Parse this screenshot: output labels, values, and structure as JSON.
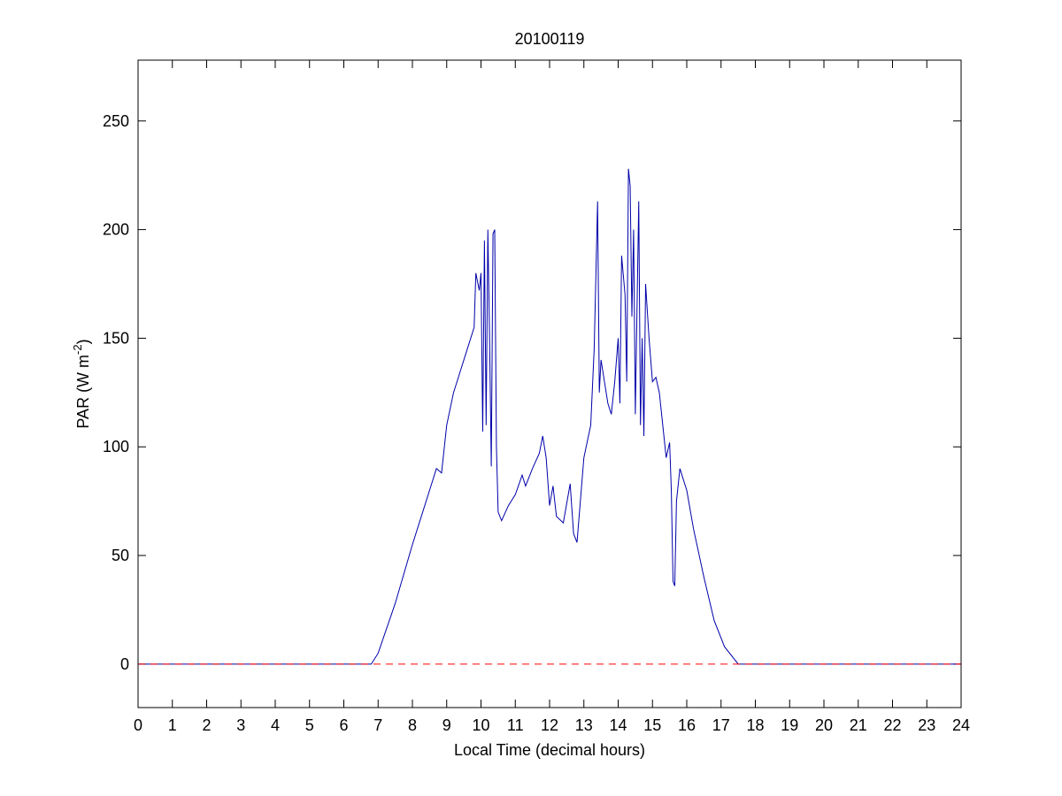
{
  "chart_data": {
    "type": "line",
    "title": "20100119",
    "x_label": "Local Time (decimal hours)",
    "y_label_parts": [
      "PAR (W m",
      "-2",
      ")"
    ],
    "xlim": [
      0,
      24
    ],
    "ylim": [
      -20,
      278
    ],
    "xticks": [
      0,
      1,
      2,
      3,
      4,
      5,
      6,
      7,
      8,
      9,
      10,
      11,
      12,
      13,
      14,
      15,
      16,
      17,
      18,
      19,
      20,
      21,
      22,
      23,
      24
    ],
    "yticks": [
      0,
      50,
      100,
      150,
      200,
      250
    ],
    "reference_line": {
      "value": 0,
      "color": "#ff0000",
      "style": "dashed"
    },
    "series": [
      {
        "name": "PAR",
        "color": "#0000aa",
        "x": [
          0,
          6.8,
          7,
          7.5,
          8,
          8.3,
          8.5,
          8.7,
          8.85,
          9,
          9.2,
          9.4,
          9.6,
          9.8,
          9.85,
          9.95,
          10,
          10.05,
          10.1,
          10.15,
          10.2,
          10.25,
          10.3,
          10.35,
          10.4,
          10.45,
          10.5,
          10.6,
          10.8,
          11,
          11.2,
          11.3,
          11.5,
          11.7,
          11.8,
          11.9,
          12,
          12.1,
          12.2,
          12.4,
          12.6,
          12.7,
          12.8,
          13,
          13.2,
          13.3,
          13.4,
          13.45,
          13.5,
          13.6,
          13.7,
          13.8,
          13.9,
          14,
          14.05,
          14.1,
          14.2,
          14.25,
          14.3,
          14.35,
          14.4,
          14.45,
          14.5,
          14.6,
          14.65,
          14.7,
          14.75,
          14.8,
          14.9,
          15,
          15.1,
          15.2,
          15.3,
          15.4,
          15.5,
          15.55,
          15.6,
          15.65,
          15.7,
          15.8,
          16,
          16.2,
          16.5,
          16.8,
          17.1,
          17.5,
          24
        ],
        "values": [
          0,
          0,
          5,
          28,
          55,
          70,
          80,
          90,
          88,
          110,
          125,
          135,
          145,
          155,
          180,
          172,
          180,
          107,
          195,
          110,
          200,
          150,
          91,
          198,
          200,
          100,
          70,
          66,
          73,
          78,
          87,
          82,
          90,
          97,
          105,
          95,
          73,
          82,
          68,
          65,
          83,
          60,
          56,
          95,
          110,
          145,
          213,
          125,
          140,
          130,
          120,
          115,
          130,
          150,
          120,
          188,
          170,
          130,
          228,
          220,
          160,
          200,
          115,
          213,
          110,
          150,
          105,
          175,
          150,
          130,
          132,
          125,
          110,
          95,
          102,
          80,
          38,
          36,
          75,
          90,
          80,
          62,
          40,
          20,
          8,
          0,
          0
        ]
      }
    ]
  }
}
